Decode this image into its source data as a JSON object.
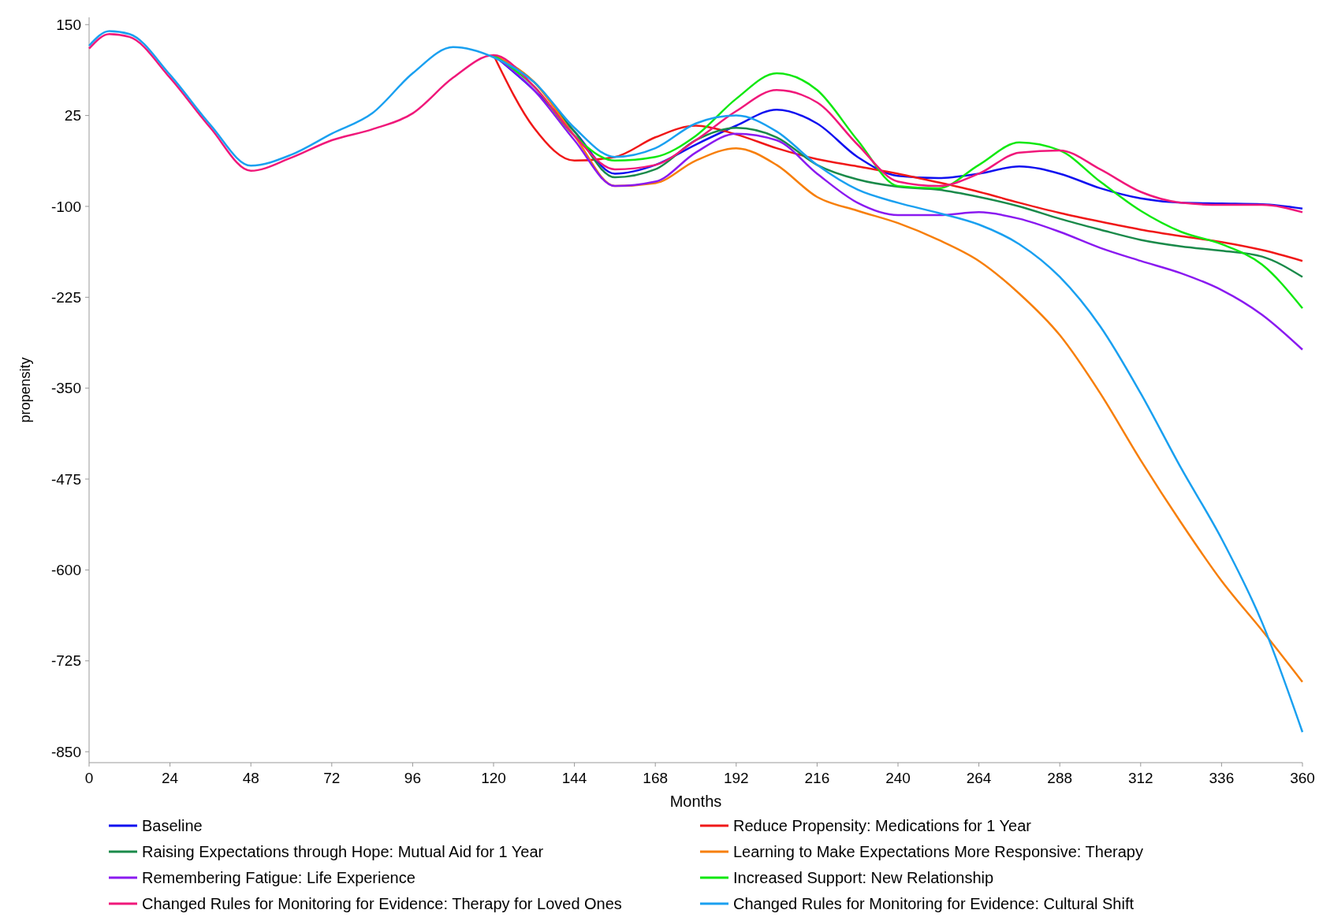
{
  "chart_data": {
    "type": "line",
    "xlabel": "Months",
    "ylabel": "propensity",
    "xlim": [
      0,
      360
    ],
    "ylim": [
      -865,
      160
    ],
    "xticks": [
      0,
      24,
      48,
      72,
      96,
      120,
      144,
      168,
      192,
      216,
      240,
      264,
      288,
      312,
      336,
      360
    ],
    "yticks": [
      150,
      25,
      -100,
      -225,
      -350,
      -475,
      -600,
      -725,
      -850
    ],
    "x": [
      0,
      6,
      12,
      24,
      36,
      48,
      60,
      72,
      84,
      96,
      108,
      120,
      132,
      144,
      156,
      168,
      180,
      192,
      204,
      216,
      228,
      240,
      252,
      264,
      276,
      288,
      300,
      312,
      324,
      336,
      348,
      360
    ],
    "grid": false,
    "legend": "bottom",
    "marker": "none",
    "line_style": "solid",
    "series": [
      {
        "name": "Baseline",
        "color": "#1010f0",
        "values": [
          null,
          null,
          null,
          null,
          null,
          null,
          null,
          null,
          null,
          null,
          null,
          108,
          60,
          3,
          -55,
          -43,
          -15,
          11,
          33,
          14,
          -32,
          -58,
          -61,
          -55,
          -45,
          -55,
          -75,
          -89,
          -95,
          -96,
          -97,
          -103
        ]
      },
      {
        "name": "Reduce Propensity: Medications for 1 Year",
        "color": "#f01818",
        "values": [
          null,
          null,
          null,
          null,
          null,
          null,
          null,
          null,
          null,
          null,
          null,
          108,
          8,
          -37,
          -32,
          -5,
          11,
          -1,
          -20,
          -35,
          -45,
          -55,
          -67,
          -80,
          -95,
          -109,
          -121,
          -132,
          -141,
          -149,
          -160,
          -175
        ]
      },
      {
        "name": "Raising Expectations through Hope: Mutual Aid for 1 Year",
        "color": "#1a8a4a",
        "values": [
          null,
          null,
          null,
          null,
          null,
          null,
          null,
          null,
          null,
          null,
          null,
          108,
          71,
          3,
          -60,
          -49,
          -9,
          8,
          -5,
          -43,
          -63,
          -73,
          -77,
          -87,
          -100,
          -117,
          -132,
          -146,
          -155,
          -161,
          -169,
          -197
        ]
      },
      {
        "name": "Learning to Make Expectations More Responsive: Therapy",
        "color": "#f77f0a",
        "values": [
          null,
          null,
          null,
          null,
          null,
          null,
          null,
          null,
          null,
          null,
          null,
          108,
          71,
          -3,
          -72,
          -68,
          -37,
          -20,
          -43,
          -87,
          -106,
          -123,
          -146,
          -175,
          -220,
          -277,
          -357,
          -449,
          -535,
          -615,
          -683,
          -754
        ]
      },
      {
        "name": "Remembering Fatigue: Life Experience",
        "color": "#8a1af0",
        "values": [
          null,
          null,
          null,
          null,
          null,
          null,
          null,
          null,
          null,
          null,
          null,
          108,
          60,
          -9,
          -72,
          -66,
          -26,
          0,
          -9,
          -55,
          -95,
          -112,
          -112,
          -108,
          -117,
          -135,
          -157,
          -175,
          -192,
          -215,
          -249,
          -297
        ]
      },
      {
        "name": "Increased Support: New Relationship",
        "color": "#10e810",
        "values": [
          null,
          null,
          null,
          null,
          null,
          null,
          null,
          null,
          null,
          null,
          null,
          108,
          65,
          -3,
          -37,
          -32,
          -3,
          48,
          83,
          60,
          -9,
          -72,
          -75,
          -43,
          -12,
          -23,
          -66,
          -106,
          -135,
          -152,
          -180,
          -240
        ]
      },
      {
        "name": "Changed Rules for Monitoring for Evidence: Therapy for Loved Ones",
        "color": "#f0187a",
        "values": [
          117,
          137,
          133,
          77,
          8,
          -51,
          -33,
          -9,
          6,
          28,
          77,
          108,
          65,
          -3,
          -49,
          -43,
          -9,
          31,
          60,
          43,
          -15,
          -66,
          -72,
          -55,
          -26,
          -23,
          -49,
          -80,
          -95,
          -98,
          -98,
          -108
        ]
      },
      {
        "name": "Changed Rules for Monitoring for Evidence: Cultural Shift",
        "color": "#1aa0f0",
        "values": [
          121,
          141,
          137,
          81,
          12,
          -44,
          -29,
          0,
          28,
          83,
          119,
          105,
          71,
          8,
          -32,
          -20,
          14,
          25,
          3,
          -43,
          -77,
          -95,
          -109,
          -125,
          -152,
          -197,
          -265,
          -357,
          -460,
          -557,
          -672,
          -823
        ]
      }
    ]
  }
}
